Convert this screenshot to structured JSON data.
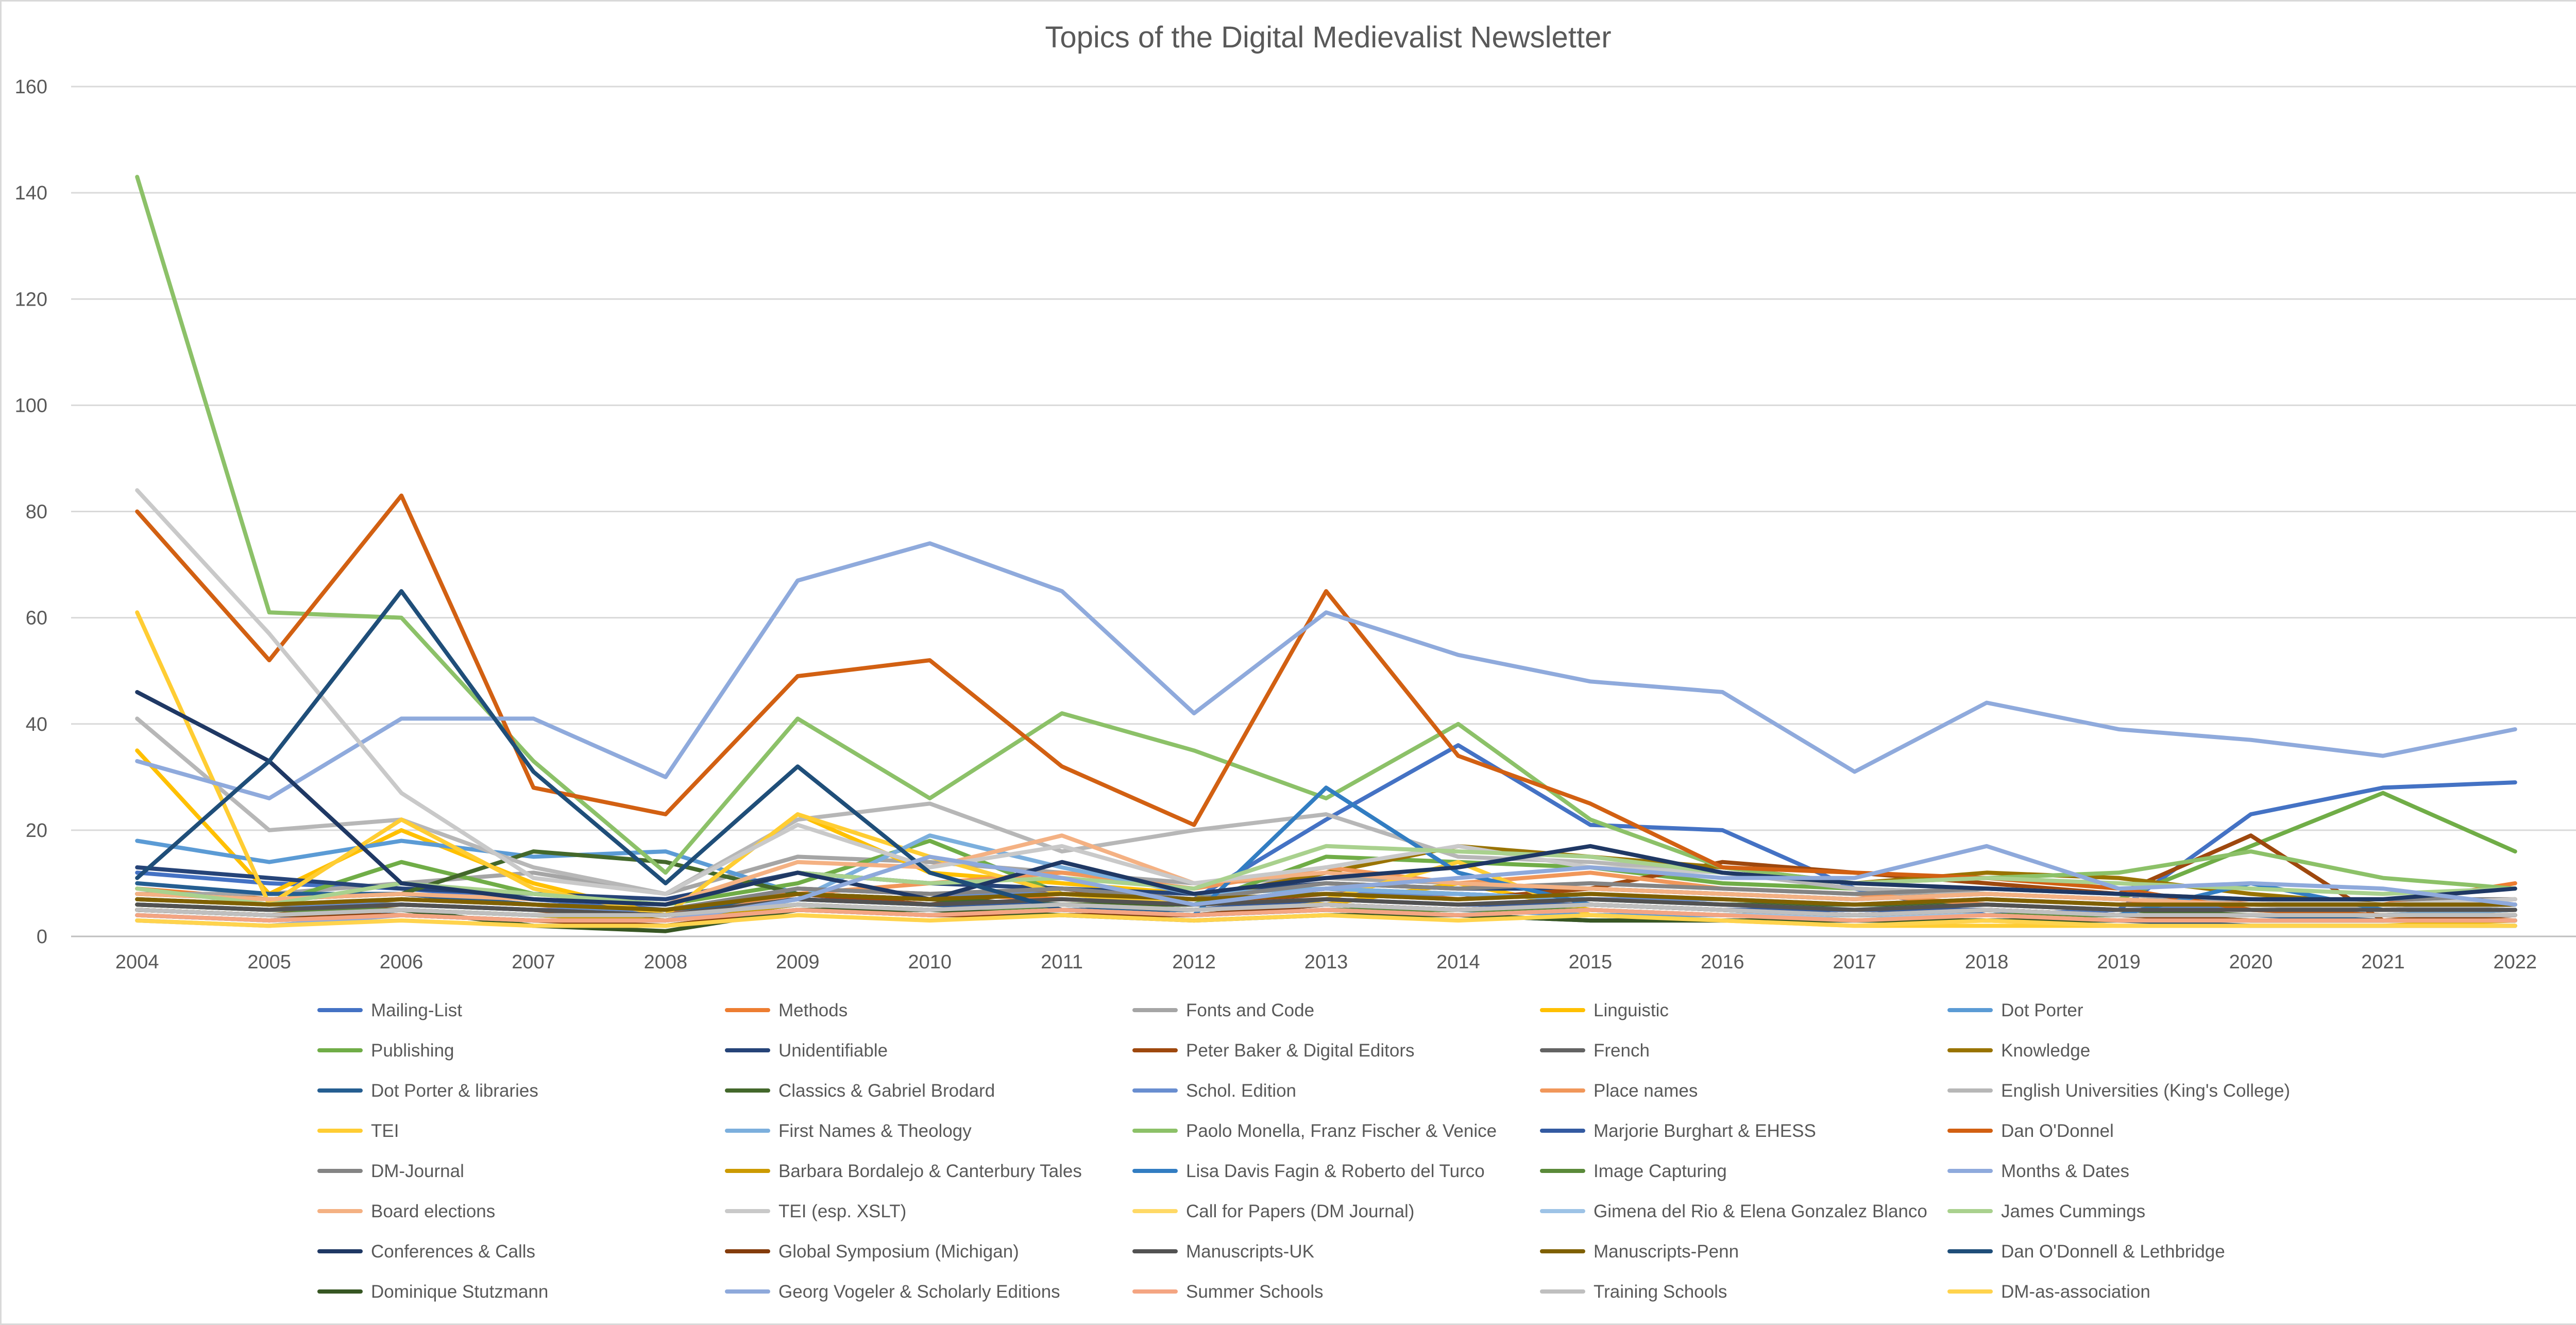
{
  "chart_data": {
    "type": "line",
    "title": "Topics of the Digital Medievalist Newsletter",
    "xlabel": "",
    "ylabel": "",
    "ylim": [
      0,
      160
    ],
    "yticks": [
      "0",
      "20",
      "40",
      "60",
      "80",
      "100",
      "120",
      "140",
      "160"
    ],
    "x": [
      "2004",
      "2005",
      "2006",
      "2007",
      "2008",
      "2009",
      "2010",
      "2011",
      "2012",
      "2013",
      "2014",
      "2015",
      "2016",
      "2017",
      "2018",
      "2019",
      "2020",
      "2021",
      "2022"
    ],
    "grid": true,
    "legend": "bottom",
    "series": [
      {
        "name": "Mailing-List",
        "color": "#4472C4",
        "values": [
          12,
          10,
          9,
          7,
          5,
          8,
          7,
          9,
          7,
          22,
          36,
          21,
          20,
          9,
          4,
          5,
          23,
          28,
          29
        ]
      },
      {
        "name": "Methods",
        "color": "#ED7D31",
        "values": [
          9,
          7,
          8,
          6,
          4,
          9,
          8,
          7,
          6,
          9,
          7,
          8,
          7,
          6,
          7,
          6,
          7,
          6,
          10
        ]
      },
      {
        "name": "Fonts and Code",
        "color": "#A5A5A5",
        "values": [
          8,
          8,
          10,
          12,
          8,
          15,
          14,
          12,
          10,
          11,
          10,
          9,
          8,
          7,
          9,
          8,
          6,
          5,
          6
        ]
      },
      {
        "name": "Linguistic",
        "color": "#FFC000",
        "values": [
          35,
          8,
          20,
          10,
          4,
          23,
          12,
          10,
          8,
          6,
          10,
          5,
          4,
          3,
          3,
          2,
          2,
          2,
          3
        ]
      },
      {
        "name": "Dot Porter",
        "color": "#5B9BD5",
        "values": [
          18,
          14,
          18,
          15,
          16,
          8,
          6,
          5,
          4,
          6,
          5,
          4,
          4,
          3,
          4,
          3,
          3,
          3,
          3
        ]
      },
      {
        "name": "Publishing",
        "color": "#70AD47",
        "values": [
          7,
          6,
          14,
          8,
          6,
          10,
          18,
          8,
          6,
          15,
          14,
          13,
          10,
          9,
          8,
          7,
          17,
          27,
          16
        ]
      },
      {
        "name": "Unidentifiable",
        "color": "#264478",
        "values": [
          13,
          11,
          9,
          8,
          7,
          12,
          10,
          9,
          8,
          10,
          9,
          9,
          8,
          7,
          8,
          7,
          6,
          6,
          6
        ]
      },
      {
        "name": "Peter Baker & Digital Editors",
        "color": "#9E480E",
        "values": [
          5,
          4,
          6,
          5,
          3,
          8,
          6,
          9,
          6,
          8,
          7,
          9,
          14,
          12,
          10,
          8,
          19,
          3,
          3
        ]
      },
      {
        "name": "French",
        "color": "#636363",
        "values": [
          4,
          3,
          5,
          4,
          3,
          6,
          5,
          6,
          5,
          6,
          5,
          6,
          5,
          4,
          5,
          4,
          4,
          4,
          5
        ]
      },
      {
        "name": "Knowledge",
        "color": "#997300",
        "values": [
          6,
          5,
          7,
          6,
          5,
          8,
          7,
          8,
          7,
          12,
          17,
          15,
          13,
          10,
          12,
          11,
          8,
          6,
          7
        ]
      },
      {
        "name": "Dot Porter & libraries",
        "color": "#255E91",
        "values": [
          10,
          8,
          8,
          6,
          5,
          7,
          6,
          5,
          5,
          6,
          5,
          5,
          4,
          4,
          5,
          4,
          4,
          3,
          4
        ]
      },
      {
        "name": "Classics & Gabriel Brodard",
        "color": "#43682B",
        "values": [
          8,
          7,
          8,
          16,
          14,
          8,
          7,
          6,
          6,
          9,
          8,
          7,
          6,
          6,
          6,
          5,
          4,
          4,
          4
        ]
      },
      {
        "name": "Schol. Edition",
        "color": "#698ED0",
        "values": [
          7,
          6,
          6,
          5,
          5,
          9,
          8,
          8,
          7,
          8,
          8,
          7,
          7,
          6,
          7,
          6,
          5,
          5,
          6
        ]
      },
      {
        "name": "Place names",
        "color": "#F1975A",
        "values": [
          5,
          4,
          4,
          3,
          3,
          8,
          10,
          12,
          9,
          13,
          10,
          12,
          9,
          8,
          6,
          5,
          5,
          4,
          5
        ]
      },
      {
        "name": "English Universities (King's College)",
        "color": "#B7B7B7",
        "values": [
          41,
          20,
          22,
          13,
          8,
          22,
          25,
          16,
          20,
          23,
          15,
          14,
          12,
          9,
          8,
          7,
          6,
          5,
          6
        ]
      },
      {
        "name": "TEI",
        "color": "#FFCD33",
        "values": [
          61,
          6,
          22,
          9,
          4,
          23,
          15,
          8,
          6,
          7,
          14,
          4,
          3,
          2,
          2,
          2,
          2,
          2,
          2
        ]
      },
      {
        "name": "First Names & Theology",
        "color": "#7CAFDD",
        "values": [
          4,
          3,
          5,
          4,
          3,
          7,
          19,
          13,
          8,
          9,
          8,
          7,
          6,
          5,
          6,
          5,
          5,
          4,
          5
        ]
      },
      {
        "name": "Paolo Monella, Franz Fischer & Venice",
        "color": "#8CC168",
        "values": [
          143,
          61,
          60,
          33,
          12,
          41,
          26,
          42,
          35,
          26,
          40,
          22,
          13,
          10,
          11,
          12,
          16,
          11,
          9
        ]
      },
      {
        "name": "Marjorie Burghart & EHESS",
        "color": "#335AA1",
        "values": [
          6,
          5,
          6,
          5,
          4,
          7,
          6,
          6,
          5,
          7,
          6,
          6,
          5,
          5,
          5,
          4,
          4,
          4,
          4
        ]
      },
      {
        "name": "Dan O'Donnel",
        "color": "#D26012",
        "values": [
          80,
          52,
          83,
          28,
          23,
          49,
          52,
          32,
          21,
          65,
          34,
          25,
          13,
          12,
          11,
          9,
          5,
          4,
          3
        ]
      },
      {
        "name": "DM-Journal",
        "color": "#848484",
        "values": [
          7,
          6,
          7,
          6,
          5,
          9,
          8,
          9,
          7,
          10,
          9,
          10,
          9,
          8,
          9,
          8,
          7,
          7,
          7
        ]
      },
      {
        "name": "Barbara Bordalejo & Canterbury Tales",
        "color": "#CC9A00",
        "values": [
          5,
          4,
          5,
          4,
          3,
          6,
          5,
          6,
          5,
          6,
          5,
          6,
          5,
          4,
          5,
          4,
          4,
          4,
          4
        ]
      },
      {
        "name": "Lisa Davis Fagin & Roberto del Turco",
        "color": "#327DC2",
        "values": [
          4,
          3,
          4,
          3,
          3,
          5,
          4,
          5,
          4,
          28,
          12,
          6,
          5,
          4,
          4,
          4,
          10,
          5,
          5
        ]
      },
      {
        "name": "Image Capturing",
        "color": "#5A8A39",
        "values": [
          6,
          5,
          5,
          4,
          4,
          6,
          5,
          5,
          4,
          5,
          5,
          5,
          4,
          4,
          4,
          4,
          3,
          3,
          3
        ]
      },
      {
        "name": "Months & Dates",
        "color": "#8FAADC",
        "values": [
          33,
          26,
          41,
          41,
          30,
          67,
          74,
          65,
          42,
          61,
          53,
          48,
          46,
          31,
          44,
          39,
          37,
          34,
          39
        ]
      },
      {
        "name": "Board elections",
        "color": "#F4B183",
        "values": [
          8,
          7,
          8,
          7,
          6,
          14,
          13,
          19,
          10,
          12,
          10,
          9,
          8,
          7,
          8,
          7,
          6,
          6,
          7
        ]
      },
      {
        "name": "TEI (esp. XSLT)",
        "color": "#C9C9C9",
        "values": [
          84,
          57,
          27,
          11,
          8,
          21,
          13,
          17,
          10,
          13,
          17,
          13,
          12,
          10,
          9,
          8,
          7,
          6,
          7
        ]
      },
      {
        "name": "Call for Papers (DM Journal)",
        "color": "#FFD966",
        "values": [
          3,
          2,
          4,
          3,
          2,
          5,
          4,
          5,
          4,
          5,
          4,
          5,
          4,
          3,
          4,
          3,
          3,
          3,
          3
        ]
      },
      {
        "name": "Gimena del Rio & Elena Gonzalez Blanco",
        "color": "#9DC3E6",
        "values": [
          4,
          3,
          4,
          3,
          3,
          5,
          4,
          5,
          4,
          5,
          4,
          5,
          4,
          4,
          4,
          3,
          3,
          3,
          3
        ]
      },
      {
        "name": "James Cummings",
        "color": "#A9D18E",
        "values": [
          9,
          6,
          10,
          8,
          6,
          12,
          10,
          11,
          9,
          17,
          16,
          15,
          12,
          10,
          11,
          10,
          9,
          8,
          9
        ]
      },
      {
        "name": "Conferences & Calls",
        "color": "#1F3864",
        "values": [
          46,
          33,
          10,
          7,
          6,
          12,
          7,
          14,
          8,
          11,
          13,
          17,
          12,
          10,
          9,
          8,
          7,
          7,
          9
        ]
      },
      {
        "name": "Global Symposium (Michigan)",
        "color": "#843C0C",
        "values": [
          5,
          4,
          4,
          3,
          2,
          5,
          4,
          4,
          4,
          6,
          5,
          6,
          5,
          4,
          5,
          4,
          3,
          3,
          4
        ]
      },
      {
        "name": "Manuscripts-UK",
        "color": "#525252",
        "values": [
          6,
          5,
          6,
          5,
          4,
          7,
          6,
          7,
          6,
          7,
          6,
          7,
          6,
          5,
          6,
          5,
          5,
          5,
          5
        ]
      },
      {
        "name": "Manuscripts-Penn",
        "color": "#7F6000",
        "values": [
          7,
          6,
          7,
          6,
          5,
          8,
          7,
          8,
          7,
          8,
          7,
          8,
          7,
          6,
          7,
          6,
          6,
          6,
          6
        ]
      },
      {
        "name": "Dan O'Donnell & Lethbridge",
        "color": "#1F4E79",
        "values": [
          11,
          33,
          65,
          31,
          10,
          32,
          12,
          5,
          4,
          5,
          4,
          3,
          3,
          3,
          3,
          3,
          2,
          2,
          2
        ]
      },
      {
        "name": "Dominique Stutzmann",
        "color": "#375623",
        "values": [
          5,
          4,
          5,
          2,
          1,
          5,
          5,
          4,
          3,
          4,
          4,
          3,
          3,
          3,
          3,
          3,
          3,
          3,
          3
        ]
      },
      {
        "name": "Georg Vogeler & Scholarly Editions",
        "color": "#8EA9DB",
        "values": [
          3,
          2,
          4,
          3,
          3,
          7,
          15,
          11,
          6,
          9,
          11,
          13,
          11,
          11,
          17,
          9,
          10,
          9,
          6
        ]
      },
      {
        "name": "Summer Schools",
        "color": "#F4A582",
        "values": [
          4,
          3,
          4,
          3,
          3,
          5,
          4,
          5,
          4,
          5,
          4,
          5,
          4,
          3,
          4,
          3,
          3,
          3,
          3
        ]
      },
      {
        "name": "Training Schools",
        "color": "#BFBFBF",
        "values": [
          5,
          4,
          5,
          4,
          4,
          6,
          5,
          6,
          5,
          6,
          5,
          6,
          5,
          4,
          5,
          4,
          4,
          4,
          4
        ]
      },
      {
        "name": "DM-as-association",
        "color": "#FFD34D",
        "values": [
          3,
          2,
          3,
          2,
          2,
          4,
          3,
          4,
          3,
          4,
          3,
          4,
          3,
          2,
          3,
          2,
          2,
          2,
          2
        ]
      }
    ]
  }
}
